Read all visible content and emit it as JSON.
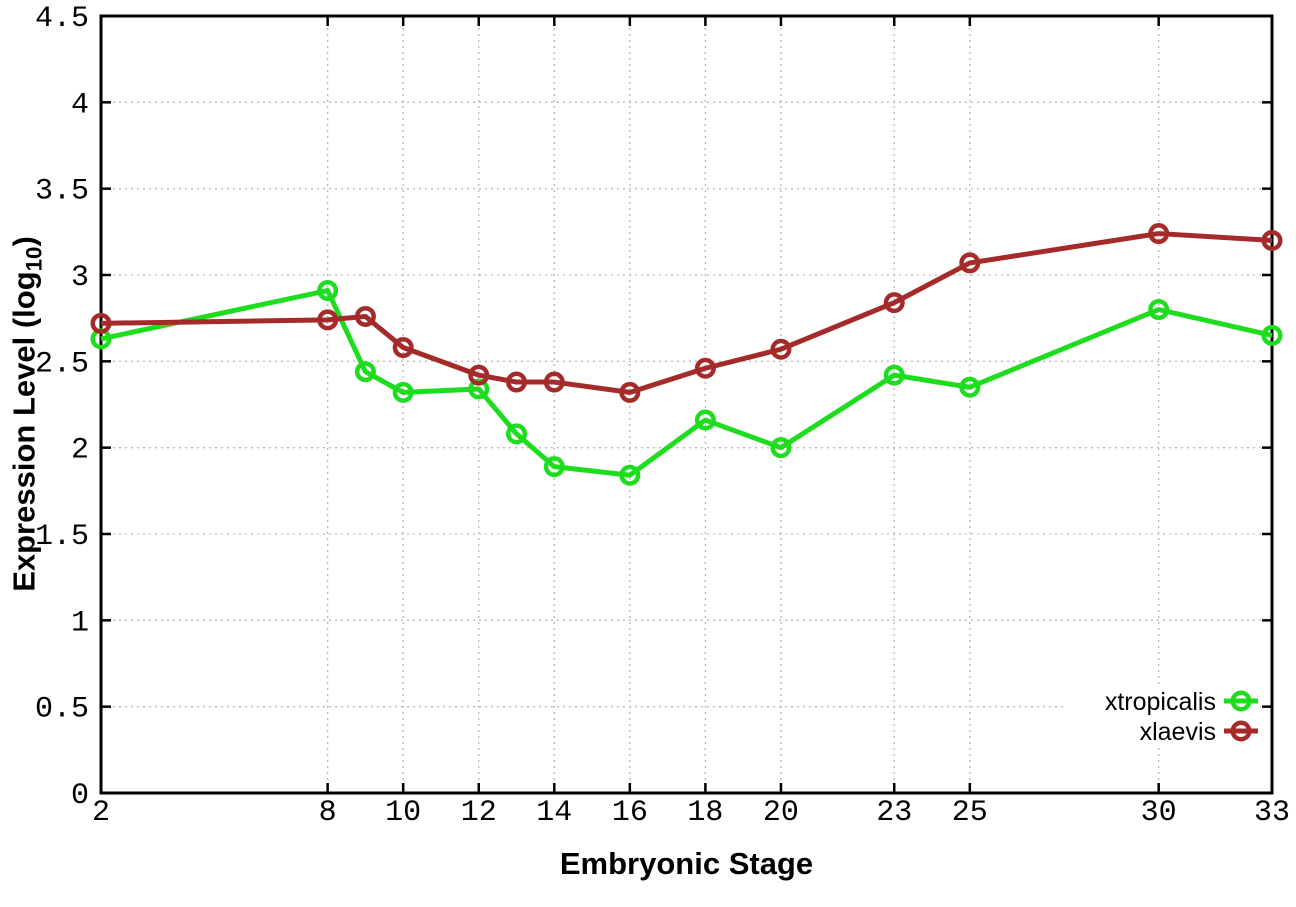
{
  "figure": {
    "background": "#ffffff",
    "xlabel": "Embryonic Stage",
    "ylabel": {
      "base": "Expression Level (log",
      "sub": "10",
      "close": ")"
    }
  },
  "chart_data": {
    "type": "line",
    "title": "",
    "xlabel": "Embryonic Stage",
    "ylabel": "Expression Level (log10)",
    "x": [
      2,
      8,
      9,
      10,
      12,
      13,
      14,
      16,
      18,
      20,
      23,
      25,
      30,
      33
    ],
    "series": [
      {
        "name": "xtropicalis",
        "color": "#1edc1e",
        "values": [
          2.63,
          2.91,
          2.44,
          2.32,
          2.34,
          2.08,
          1.89,
          1.84,
          2.16,
          2.0,
          2.42,
          2.35,
          2.8,
          2.65
        ]
      },
      {
        "name": "xlaevis",
        "color": "#a52a2a",
        "values": [
          2.72,
          2.74,
          2.76,
          2.58,
          2.42,
          2.38,
          2.38,
          2.32,
          2.46,
          2.57,
          2.84,
          3.07,
          3.24,
          3.2
        ]
      }
    ],
    "x_ticks": [
      2,
      8,
      10,
      12,
      14,
      16,
      18,
      20,
      23,
      25,
      30,
      33
    ],
    "y_ticks": [
      0,
      0.5,
      1,
      1.5,
      2,
      2.5,
      3,
      3.5,
      4,
      4.5
    ],
    "xlim": [
      2,
      33
    ],
    "ylim": [
      0,
      4.5
    ],
    "grid": true,
    "marker": "open-circle",
    "legend_position": "inside-bottom-right",
    "axis_color": "#000000",
    "grid_color": "#b9b9b9"
  }
}
